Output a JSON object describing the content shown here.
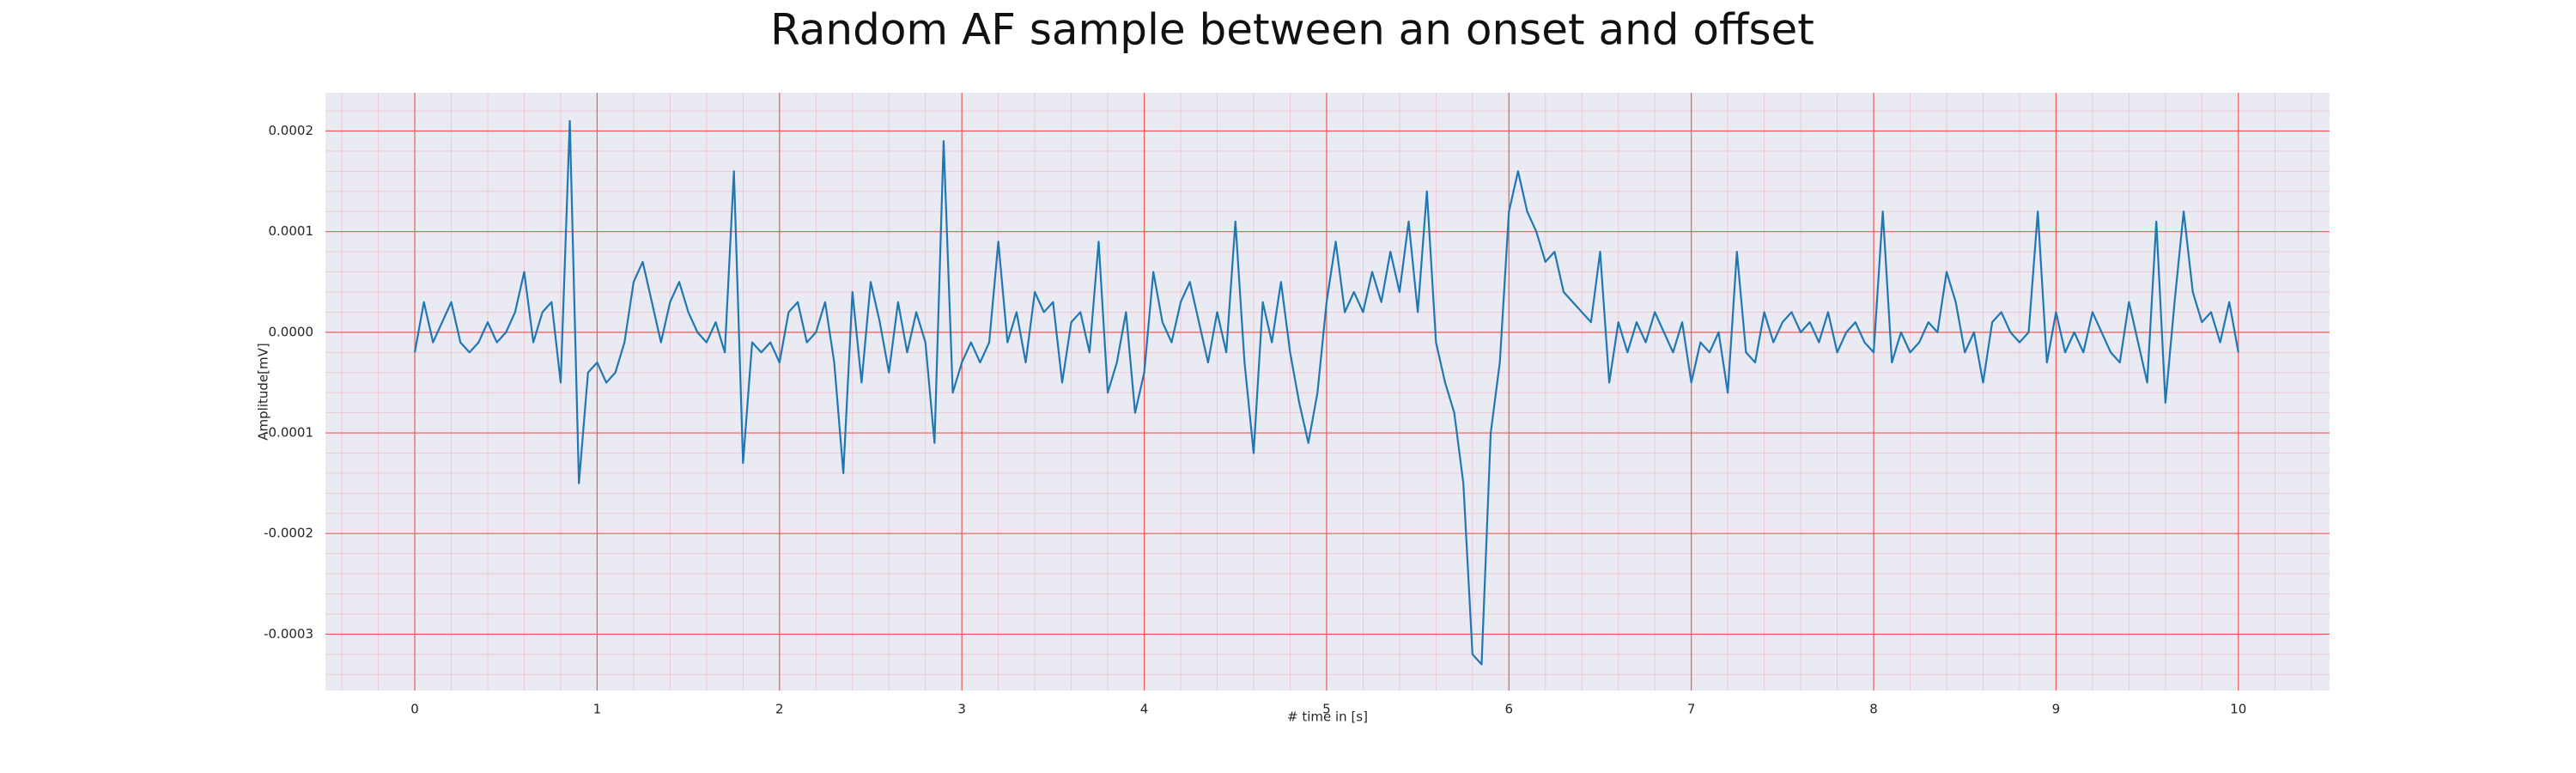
{
  "chart_data": {
    "type": "line",
    "title": "Random AF sample between an onset and offset",
    "xlabel": "# time in [s]",
    "ylabel": "Amplitude[mV]",
    "color": "#1f77b4",
    "grid": true,
    "x": [
      0,
      0.05,
      0.1,
      0.15,
      0.2,
      0.25,
      0.3,
      0.35,
      0.4,
      0.45,
      0.5,
      0.55,
      0.6,
      0.65,
      0.7,
      0.75,
      0.8,
      0.85,
      0.9,
      0.95,
      1,
      1.05,
      1.1,
      1.15,
      1.2,
      1.25,
      1.3,
      1.35,
      1.4,
      1.45,
      1.5,
      1.55,
      1.6,
      1.65,
      1.7,
      1.75,
      1.8,
      1.85,
      1.9,
      1.95,
      2,
      2.05,
      2.1,
      2.15,
      2.2,
      2.25,
      2.3,
      2.35,
      2.4,
      2.45,
      2.5,
      2.55,
      2.6,
      2.65,
      2.7,
      2.75,
      2.8,
      2.85,
      2.9,
      2.95,
      3,
      3.05,
      3.1,
      3.15,
      3.2,
      3.25,
      3.3,
      3.35,
      3.4,
      3.45,
      3.5,
      3.55,
      3.6,
      3.65,
      3.7,
      3.75,
      3.8,
      3.85,
      3.9,
      3.95,
      4,
      4.05,
      4.1,
      4.15,
      4.2,
      4.25,
      4.3,
      4.35,
      4.4,
      4.45,
      4.5,
      4.55,
      4.6,
      4.65,
      4.7,
      4.75,
      4.8,
      4.85,
      4.9,
      4.95,
      5,
      5.05,
      5.1,
      5.15,
      5.2,
      5.25,
      5.3,
      5.35,
      5.4,
      5.45,
      5.5,
      5.55,
      5.6,
      5.65,
      5.7,
      5.75,
      5.8,
      5.85,
      5.9,
      5.95,
      6,
      6.05,
      6.1,
      6.15,
      6.2,
      6.25,
      6.3,
      6.35,
      6.4,
      6.45,
      6.5,
      6.55,
      6.6,
      6.65,
      6.7,
      6.75,
      6.8,
      6.85,
      6.9,
      6.95,
      7,
      7.05,
      7.1,
      7.15,
      7.2,
      7.25,
      7.3,
      7.35,
      7.4,
      7.45,
      7.5,
      7.55,
      7.6,
      7.65,
      7.7,
      7.75,
      7.8,
      7.85,
      7.9,
      7.95,
      8,
      8.05,
      8.1,
      8.15,
      8.2,
      8.25,
      8.3,
      8.35,
      8.4,
      8.45,
      8.5,
      8.55,
      8.6,
      8.65,
      8.7,
      8.75,
      8.8,
      8.85,
      8.9,
      8.95,
      9,
      9.05,
      9.1,
      9.15,
      9.2,
      9.25,
      9.3,
      9.35,
      9.4,
      9.45,
      9.5,
      9.55,
      9.6,
      9.65,
      9.7,
      9.75,
      9.8,
      9.85,
      9.9,
      9.95,
      10
    ],
    "values": [
      -2e-05,
      3e-05,
      -1e-05,
      1e-05,
      3e-05,
      -1e-05,
      -2e-05,
      -1e-05,
      1e-05,
      -1e-05,
      0,
      2e-05,
      6e-05,
      -1e-05,
      2e-05,
      3e-05,
      -5e-05,
      0.00021,
      -0.00015,
      -4e-05,
      -3e-05,
      -5e-05,
      -4e-05,
      -1e-05,
      5e-05,
      7e-05,
      3e-05,
      -1e-05,
      3e-05,
      5e-05,
      2e-05,
      0,
      -1e-05,
      1e-05,
      -2e-05,
      0.00016,
      -0.00013,
      -1e-05,
      -2e-05,
      -1e-05,
      -3e-05,
      2e-05,
      3e-05,
      -1e-05,
      0,
      3e-05,
      -3e-05,
      -0.00014,
      4e-05,
      -5e-05,
      5e-05,
      1e-05,
      -4e-05,
      3e-05,
      -2e-05,
      2e-05,
      -1e-05,
      -0.00011,
      0.00019,
      -6e-05,
      -3e-05,
      -1e-05,
      -3e-05,
      -1e-05,
      9e-05,
      -1e-05,
      2e-05,
      -3e-05,
      4e-05,
      2e-05,
      3e-05,
      -5e-05,
      1e-05,
      2e-05,
      -2e-05,
      9e-05,
      -6e-05,
      -3e-05,
      2e-05,
      -8e-05,
      -4e-05,
      6e-05,
      1e-05,
      -1e-05,
      3e-05,
      5e-05,
      1e-05,
      -3e-05,
      2e-05,
      -2e-05,
      0.00011,
      -3e-05,
      -0.00012,
      3e-05,
      -1e-05,
      5e-05,
      -2e-05,
      -7e-05,
      -0.00011,
      -6e-05,
      3e-05,
      9e-05,
      2e-05,
      4e-05,
      2e-05,
      6e-05,
      3e-05,
      8e-05,
      4e-05,
      0.00011,
      2e-05,
      0.00014,
      -1e-05,
      -5e-05,
      -8e-05,
      -0.00015,
      -0.00032,
      -0.00033,
      -0.0001,
      -3e-05,
      0.00012,
      0.00016,
      0.00012,
      0.0001,
      7e-05,
      8e-05,
      4e-05,
      3e-05,
      2e-05,
      1e-05,
      8e-05,
      -5e-05,
      1e-05,
      -2e-05,
      1e-05,
      -1e-05,
      2e-05,
      0,
      -2e-05,
      1e-05,
      -5e-05,
      -1e-05,
      -2e-05,
      0,
      -6e-05,
      8e-05,
      -2e-05,
      -3e-05,
      2e-05,
      -1e-05,
      1e-05,
      2e-05,
      0,
      1e-05,
      -1e-05,
      2e-05,
      -2e-05,
      0,
      1e-05,
      -1e-05,
      -2e-05,
      0.00012,
      -3e-05,
      0,
      -2e-05,
      -1e-05,
      1e-05,
      0,
      6e-05,
      3e-05,
      -2e-05,
      0,
      -5e-05,
      1e-05,
      2e-05,
      0,
      -1e-05,
      0,
      0.00012,
      -3e-05,
      2e-05,
      -2e-05,
      0,
      -2e-05,
      2e-05,
      0,
      -2e-05,
      -3e-05,
      3e-05,
      -1e-05,
      -5e-05,
      0.00011,
      -7e-05,
      3e-05,
      0.00012,
      4e-05,
      1e-05,
      2e-05,
      -1e-05,
      3e-05,
      -2e-05
    ],
    "xlim": [
      -0.49,
      10.5
    ],
    "ylim": [
      -0.000356,
      0.000238
    ],
    "xticks": [
      0,
      1,
      2,
      3,
      4,
      5,
      6,
      7,
      8,
      9,
      10
    ],
    "yticks": [
      -0.0003,
      -0.0002,
      -0.0001,
      {
        "value": 0,
        "label": "0.0000"
      },
      0.0001,
      0.0002
    ]
  }
}
